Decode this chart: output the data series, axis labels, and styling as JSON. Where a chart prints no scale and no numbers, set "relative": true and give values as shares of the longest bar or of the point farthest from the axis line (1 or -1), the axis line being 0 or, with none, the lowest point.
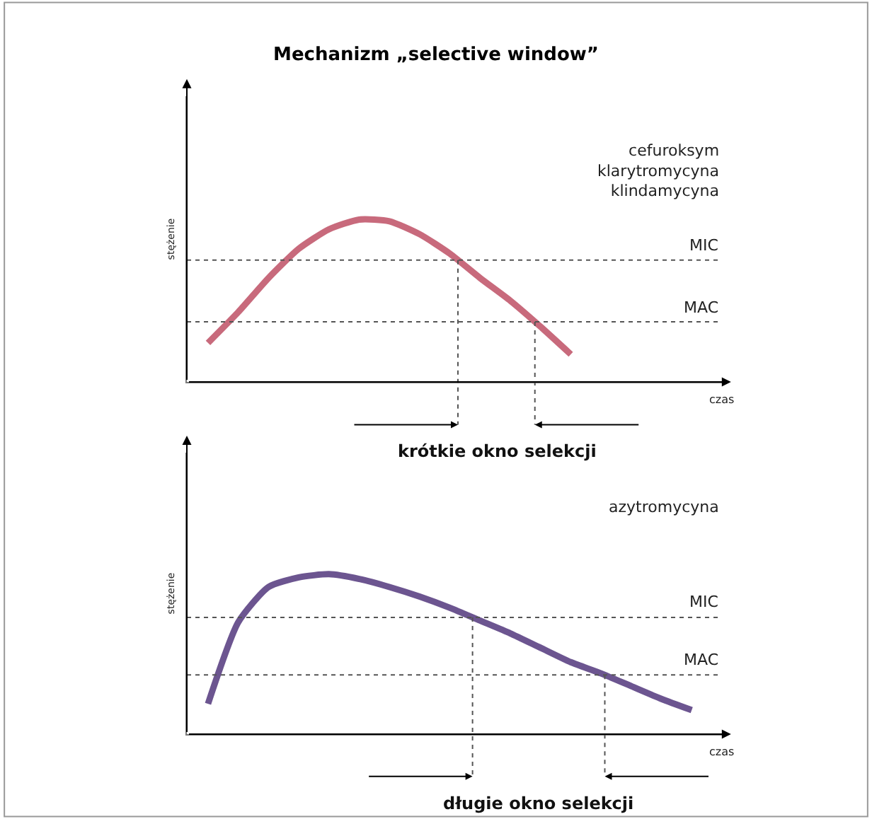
{
  "chart_data": [
    {
      "type": "line",
      "title": "Mechanizm „selective window”",
      "xlabel": "czas",
      "ylabel": "stężenie",
      "relative": true,
      "marker": "none",
      "line_style": "solid",
      "categories": [
        null,
        null,
        null,
        null,
        null,
        null,
        null,
        null,
        null,
        null,
        null,
        null,
        null,
        null,
        null,
        null,
        null
      ],
      "series": [
        {
          "color": "#c86a7c",
          "values": [
            0.24,
            0.43,
            0.64,
            0.82,
            0.94,
            1.0,
            0.99,
            0.91,
            0.79,
            0.64,
            0.5,
            0.34,
            0.17,
            null,
            null,
            null,
            null
          ]
        }
      ],
      "ref_lines": [
        {
          "axis": "y",
          "value": 0.75,
          "label": "MIC",
          "color": "#555555",
          "line_style": "dotted"
        },
        {
          "axis": "y",
          "value": 0.37,
          "label": "MAC",
          "color": "#555555",
          "line_style": "dotted"
        }
      ],
      "annotations": [
        "cefuroksym\nklarytromycyna\nklindamycyna",
        "krótkie okno selekcji"
      ]
    },
    {
      "type": "line",
      "xlabel": "czas",
      "ylabel": "stężenie",
      "relative": true,
      "marker": "none",
      "line_style": "solid",
      "categories": [
        null,
        null,
        null,
        null,
        null,
        null,
        null,
        null,
        null,
        null,
        null,
        null,
        null,
        null,
        null,
        null,
        null
      ],
      "series": [
        {
          "color": "#6c5590",
          "values": [
            0.19,
            0.7,
            0.92,
            0.98,
            1.0,
            0.97,
            0.92,
            0.86,
            0.79,
            0.71,
            0.63,
            0.54,
            0.45,
            0.38,
            0.3,
            0.22,
            0.15
          ]
        }
      ],
      "ref_lines": [
        {
          "axis": "y",
          "value": 0.73,
          "label": "MIC",
          "color": "#555555",
          "line_style": "dotted"
        },
        {
          "axis": "y",
          "value": 0.37,
          "label": "MAC",
          "color": "#555555",
          "line_style": "dotted"
        }
      ],
      "annotations": [
        "azytromycyna",
        "długie okno selekcji"
      ]
    }
  ]
}
